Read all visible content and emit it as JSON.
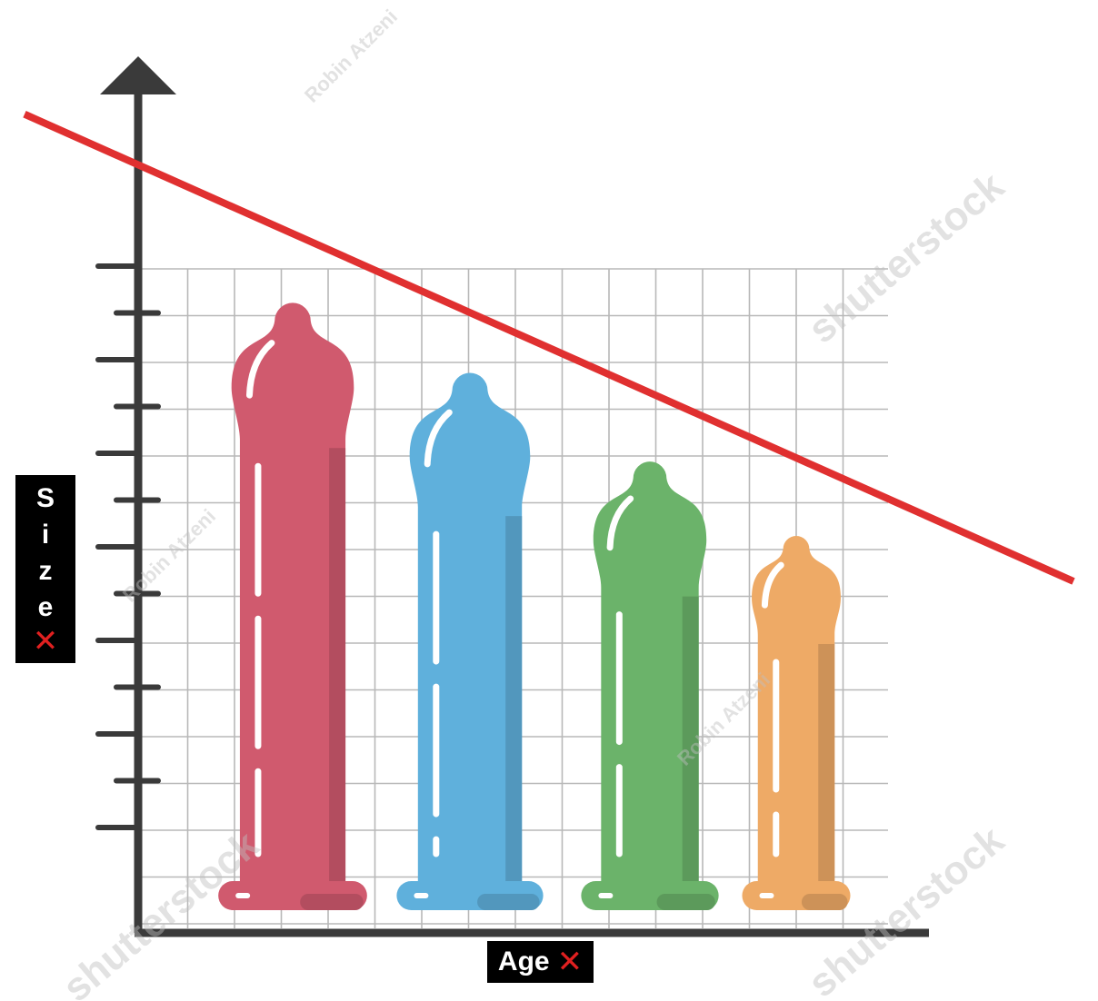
{
  "chart_data": {
    "type": "bar",
    "title": "",
    "xlabel": "Age",
    "ylabel": "Size",
    "label_mark": "✕",
    "categories": [
      "",
      "",
      "",
      ""
    ],
    "values": [
      13,
      11.5,
      9.6,
      8
    ],
    "bar_colors": [
      "#d05a6e",
      "#5fb0dc",
      "#6bb36a",
      "#eeaa66"
    ],
    "ylim": [
      0,
      14
    ],
    "ytick_count": 13,
    "grid": true,
    "trend_line": {
      "color": "#e03030",
      "y_start": 17,
      "y_end": 7
    }
  },
  "watermarks": {
    "author": "Robin Atzeni",
    "brand": "shutterstock"
  }
}
